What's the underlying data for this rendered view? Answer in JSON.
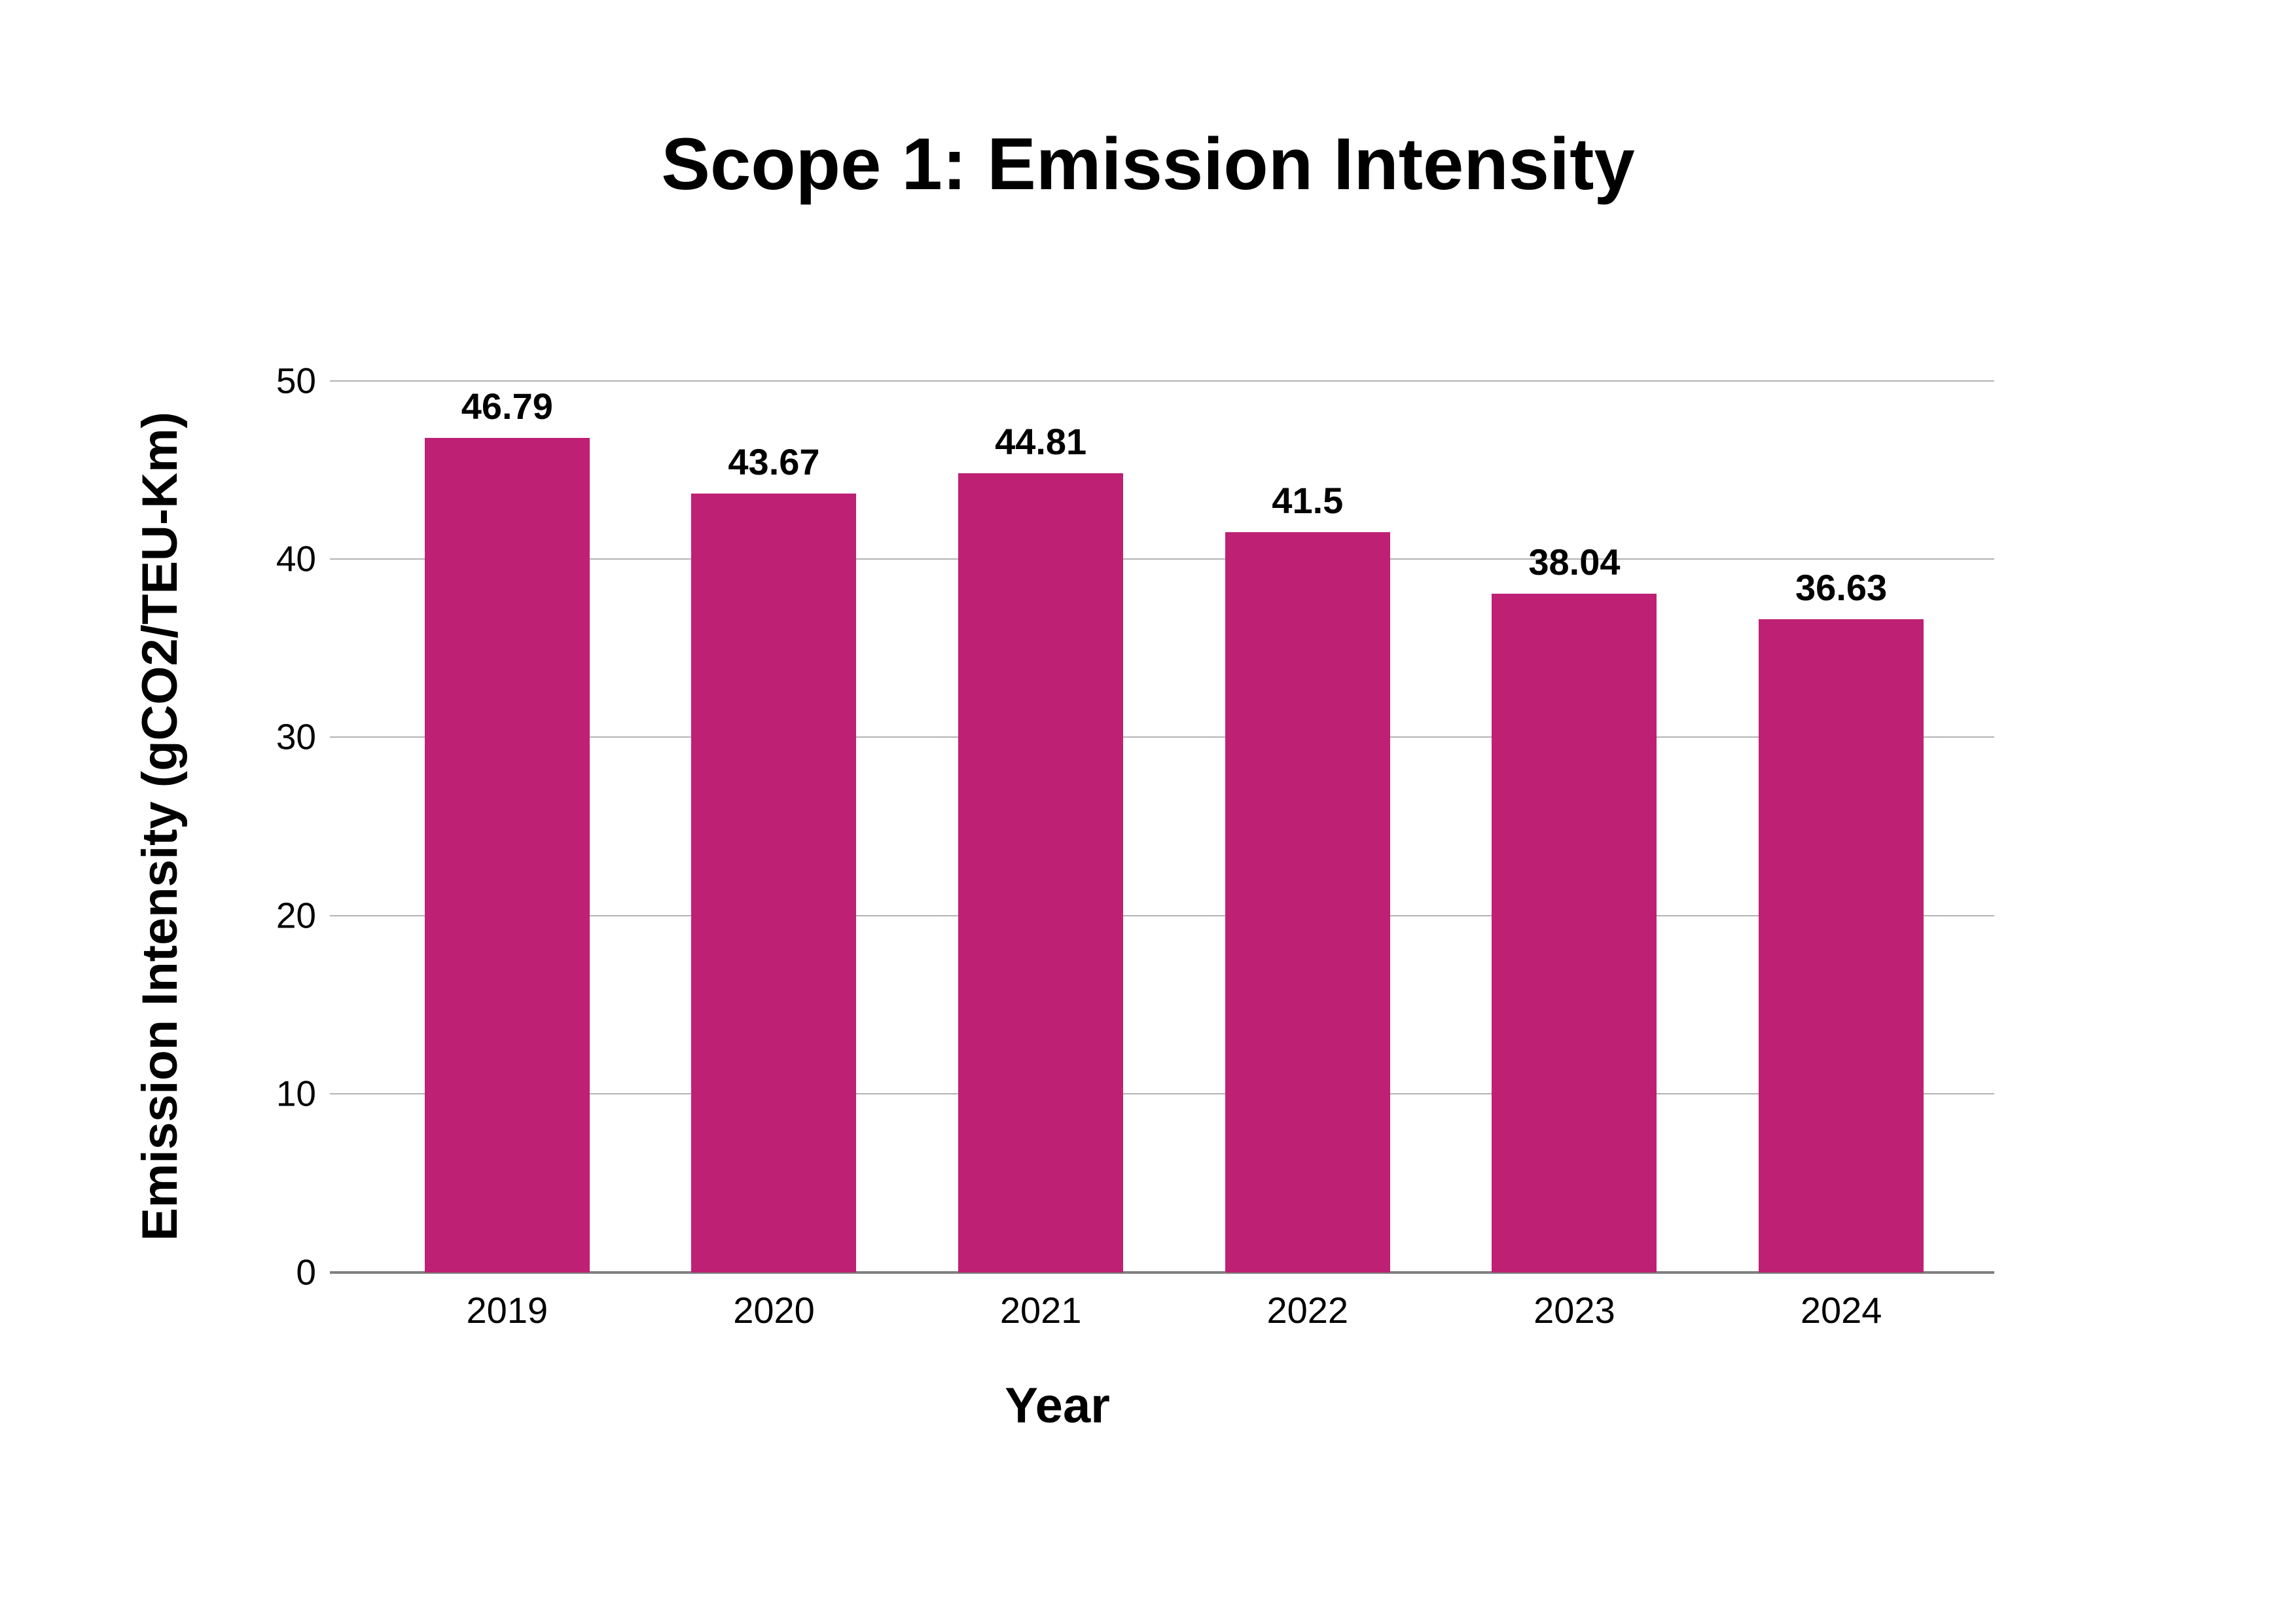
{
  "chart_data": {
    "type": "bar",
    "title": "Scope 1: Emission Intensity",
    "xlabel": "Year",
    "ylabel": "Emission Intensity (gCO2/TEU-Km)",
    "categories": [
      "2019",
      "2020",
      "2021",
      "2022",
      "2023",
      "2024"
    ],
    "values": [
      46.79,
      43.67,
      44.81,
      41.5,
      38.04,
      36.63
    ],
    "value_labels": [
      "46.79",
      "43.67",
      "44.81",
      "41.5",
      "38.04",
      "36.63"
    ],
    "ylim": [
      0,
      50
    ],
    "yticks": [
      0,
      10,
      20,
      30,
      40,
      50
    ],
    "grid": "horizontal-only",
    "legend": "none",
    "colors": {
      "bar": "#be2173",
      "gridline": "#b3b3b3",
      "axis_line": "#7f7f7f",
      "text": "#000000",
      "background": "#ffffff"
    }
  }
}
